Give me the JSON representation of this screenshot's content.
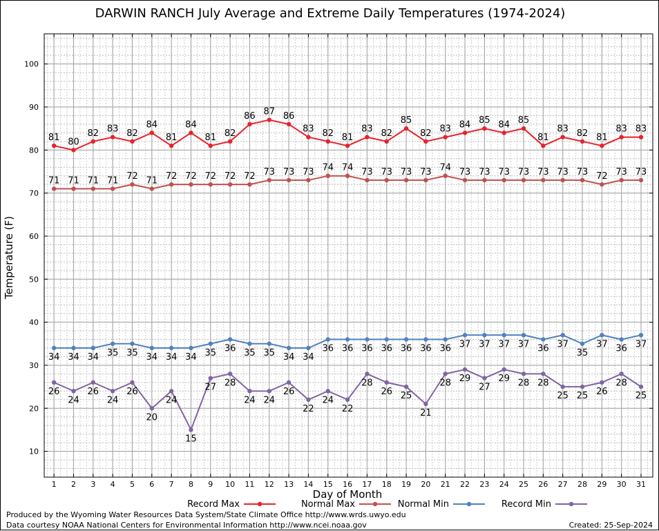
{
  "chart_data": {
    "type": "line",
    "title": "DARWIN RANCH July Average and Extreme Daily Temperatures (1974-2024)",
    "xlabel": "Day of Month",
    "ylabel": "Temperature (F)",
    "categories": [
      "1",
      "2",
      "3",
      "4",
      "5",
      "6",
      "7",
      "8",
      "9",
      "10",
      "11",
      "12",
      "13",
      "14",
      "15",
      "16",
      "17",
      "18",
      "19",
      "20",
      "21",
      "22",
      "23",
      "24",
      "25",
      "26",
      "27",
      "28",
      "29",
      "30",
      "31"
    ],
    "yticks": [
      10,
      20,
      30,
      40,
      50,
      60,
      70,
      80,
      90,
      100
    ],
    "ylim": [
      4,
      107
    ],
    "grid": true,
    "legend_placement": "bottom",
    "series": [
      {
        "name": "Record Max",
        "color": "#e8222b",
        "values": [
          81,
          80,
          82,
          83,
          82,
          84,
          81,
          84,
          81,
          82,
          86,
          87,
          86,
          83,
          82,
          81,
          83,
          82,
          85,
          82,
          83,
          84,
          85,
          84,
          85,
          81,
          83,
          82,
          81,
          83,
          83
        ]
      },
      {
        "name": "Normal Max",
        "color": "#c0504d",
        "values": [
          71,
          71,
          71,
          71,
          72,
          71,
          72,
          72,
          72,
          72,
          72,
          73,
          73,
          73,
          74,
          74,
          73,
          73,
          73,
          73,
          74,
          73,
          73,
          73,
          73,
          73,
          73,
          73,
          72,
          73,
          73
        ]
      },
      {
        "name": "Normal Min",
        "color": "#4f81bd",
        "values": [
          34,
          34,
          34,
          35,
          35,
          34,
          34,
          34,
          35,
          36,
          35,
          35,
          34,
          34,
          36,
          36,
          36,
          36,
          36,
          36,
          36,
          37,
          37,
          37,
          37,
          36,
          37,
          35,
          37,
          36,
          37
        ]
      },
      {
        "name": "Record Min",
        "color": "#8064a2",
        "values": [
          26,
          24,
          26,
          24,
          26,
          20,
          24,
          15,
          27,
          28,
          24,
          24,
          26,
          22,
          24,
          22,
          28,
          26,
          25,
          21,
          28,
          29,
          27,
          29,
          28,
          28,
          25,
          25,
          26,
          28,
          25
        ]
      }
    ]
  },
  "footer": {
    "credit_line1": "Produced by the Wyoming Water Resources Data System/State Climate Office http://www.wrds.uwyo.edu",
    "credit_line2": "Data courtesy NOAA National Centers for Environmental Information http://www.ncei.noaa.gov",
    "created": "Created:  25-Sep-2024"
  }
}
